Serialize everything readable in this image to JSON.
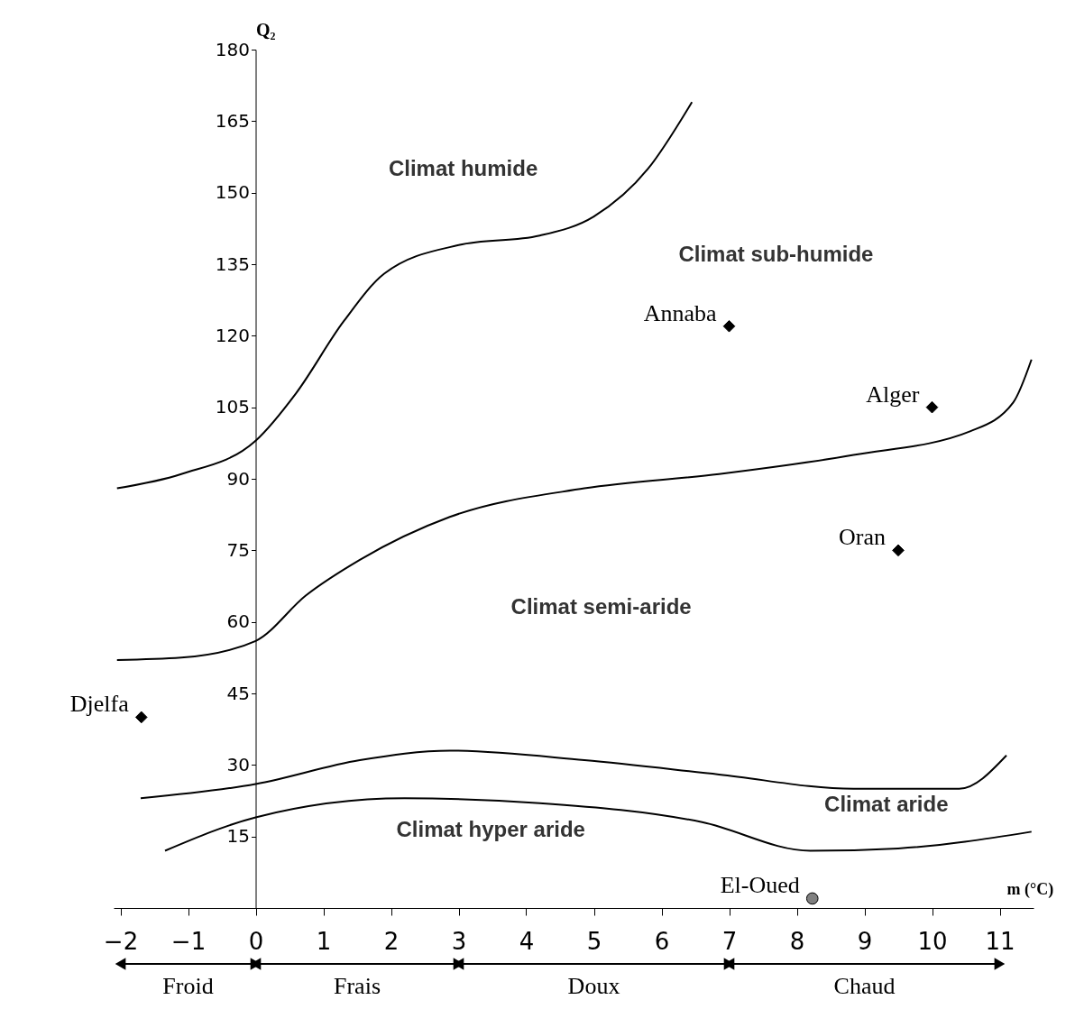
{
  "chart_data": {
    "type": "line",
    "xlabel": "m (°C)",
    "ylabel": "Q₂",
    "xlim": [
      -2.1,
      11.5
    ],
    "xticks": [
      -2,
      -1,
      0,
      1,
      2,
      3,
      4,
      5,
      6,
      7,
      8,
      9,
      10,
      11
    ],
    "ylim": [
      0,
      180
    ],
    "yticks": [
      15,
      30,
      45,
      60,
      75,
      90,
      105,
      120,
      135,
      150,
      165,
      180
    ],
    "grid": false,
    "legend": false,
    "series": [
      {
        "color": "#000000",
        "marker": "none",
        "x": [
          -2.05,
          -1.1,
          0,
          0.6,
          1.3,
          1.9,
          3,
          4.2,
          5,
          5.8,
          6.45
        ],
        "values": [
          88,
          91,
          98,
          108,
          123,
          133,
          139,
          141,
          145,
          155,
          169
        ]
      },
      {
        "color": "#000000",
        "marker": "none",
        "x": [
          -2.05,
          -1.1,
          0,
          0.74,
          1.54,
          2.87,
          4.86,
          6.85,
          8.84,
          10.57,
          11.2,
          11.47
        ],
        "values": [
          52,
          52.5,
          56,
          65.5,
          73,
          82,
          88,
          91,
          95,
          100,
          106,
          115
        ]
      },
      {
        "color": "#000000",
        "marker": "none",
        "x": [
          -1.7,
          0,
          1.54,
          2.87,
          4.86,
          6.85,
          8.84,
          10.4,
          11.1
        ],
        "values": [
          23,
          26,
          31,
          33,
          31,
          28,
          25,
          25,
          32
        ]
      },
      {
        "color": "#000000",
        "marker": "none",
        "x": [
          -1.34,
          0,
          2.2,
          4.2,
          6.6,
          8.2,
          9.5,
          11.47
        ],
        "values": [
          12,
          19,
          23,
          22,
          18,
          12,
          12.5,
          16
        ]
      },
      {
        "type": "scatter",
        "name": "Djelfa",
        "color": "#000000",
        "marker": "diamond",
        "x": [
          -1.69
        ],
        "values": [
          40
        ]
      },
      {
        "type": "scatter",
        "name": "Annaba",
        "color": "#000000",
        "marker": "diamond",
        "x": [
          7.0
        ],
        "values": [
          122
        ]
      },
      {
        "type": "scatter",
        "name": "Alger",
        "color": "#000000",
        "marker": "diamond",
        "x": [
          10.0
        ],
        "values": [
          105
        ]
      },
      {
        "type": "scatter",
        "name": "Oran",
        "color": "#000000",
        "marker": "diamond",
        "x": [
          9.5
        ],
        "values": [
          75
        ]
      },
      {
        "type": "scatter",
        "name": "El-Oued",
        "color": "#808080",
        "marker": "circle",
        "x": [
          8.23
        ],
        "values": [
          2
        ]
      }
    ],
    "annotations": [
      "Climat humide",
      "Climat sub-humide",
      "Climat semi-aride",
      "Climat aride",
      "Climat hyper aride",
      "Froid",
      "Frais",
      "Doux",
      "Chaud"
    ]
  }
}
